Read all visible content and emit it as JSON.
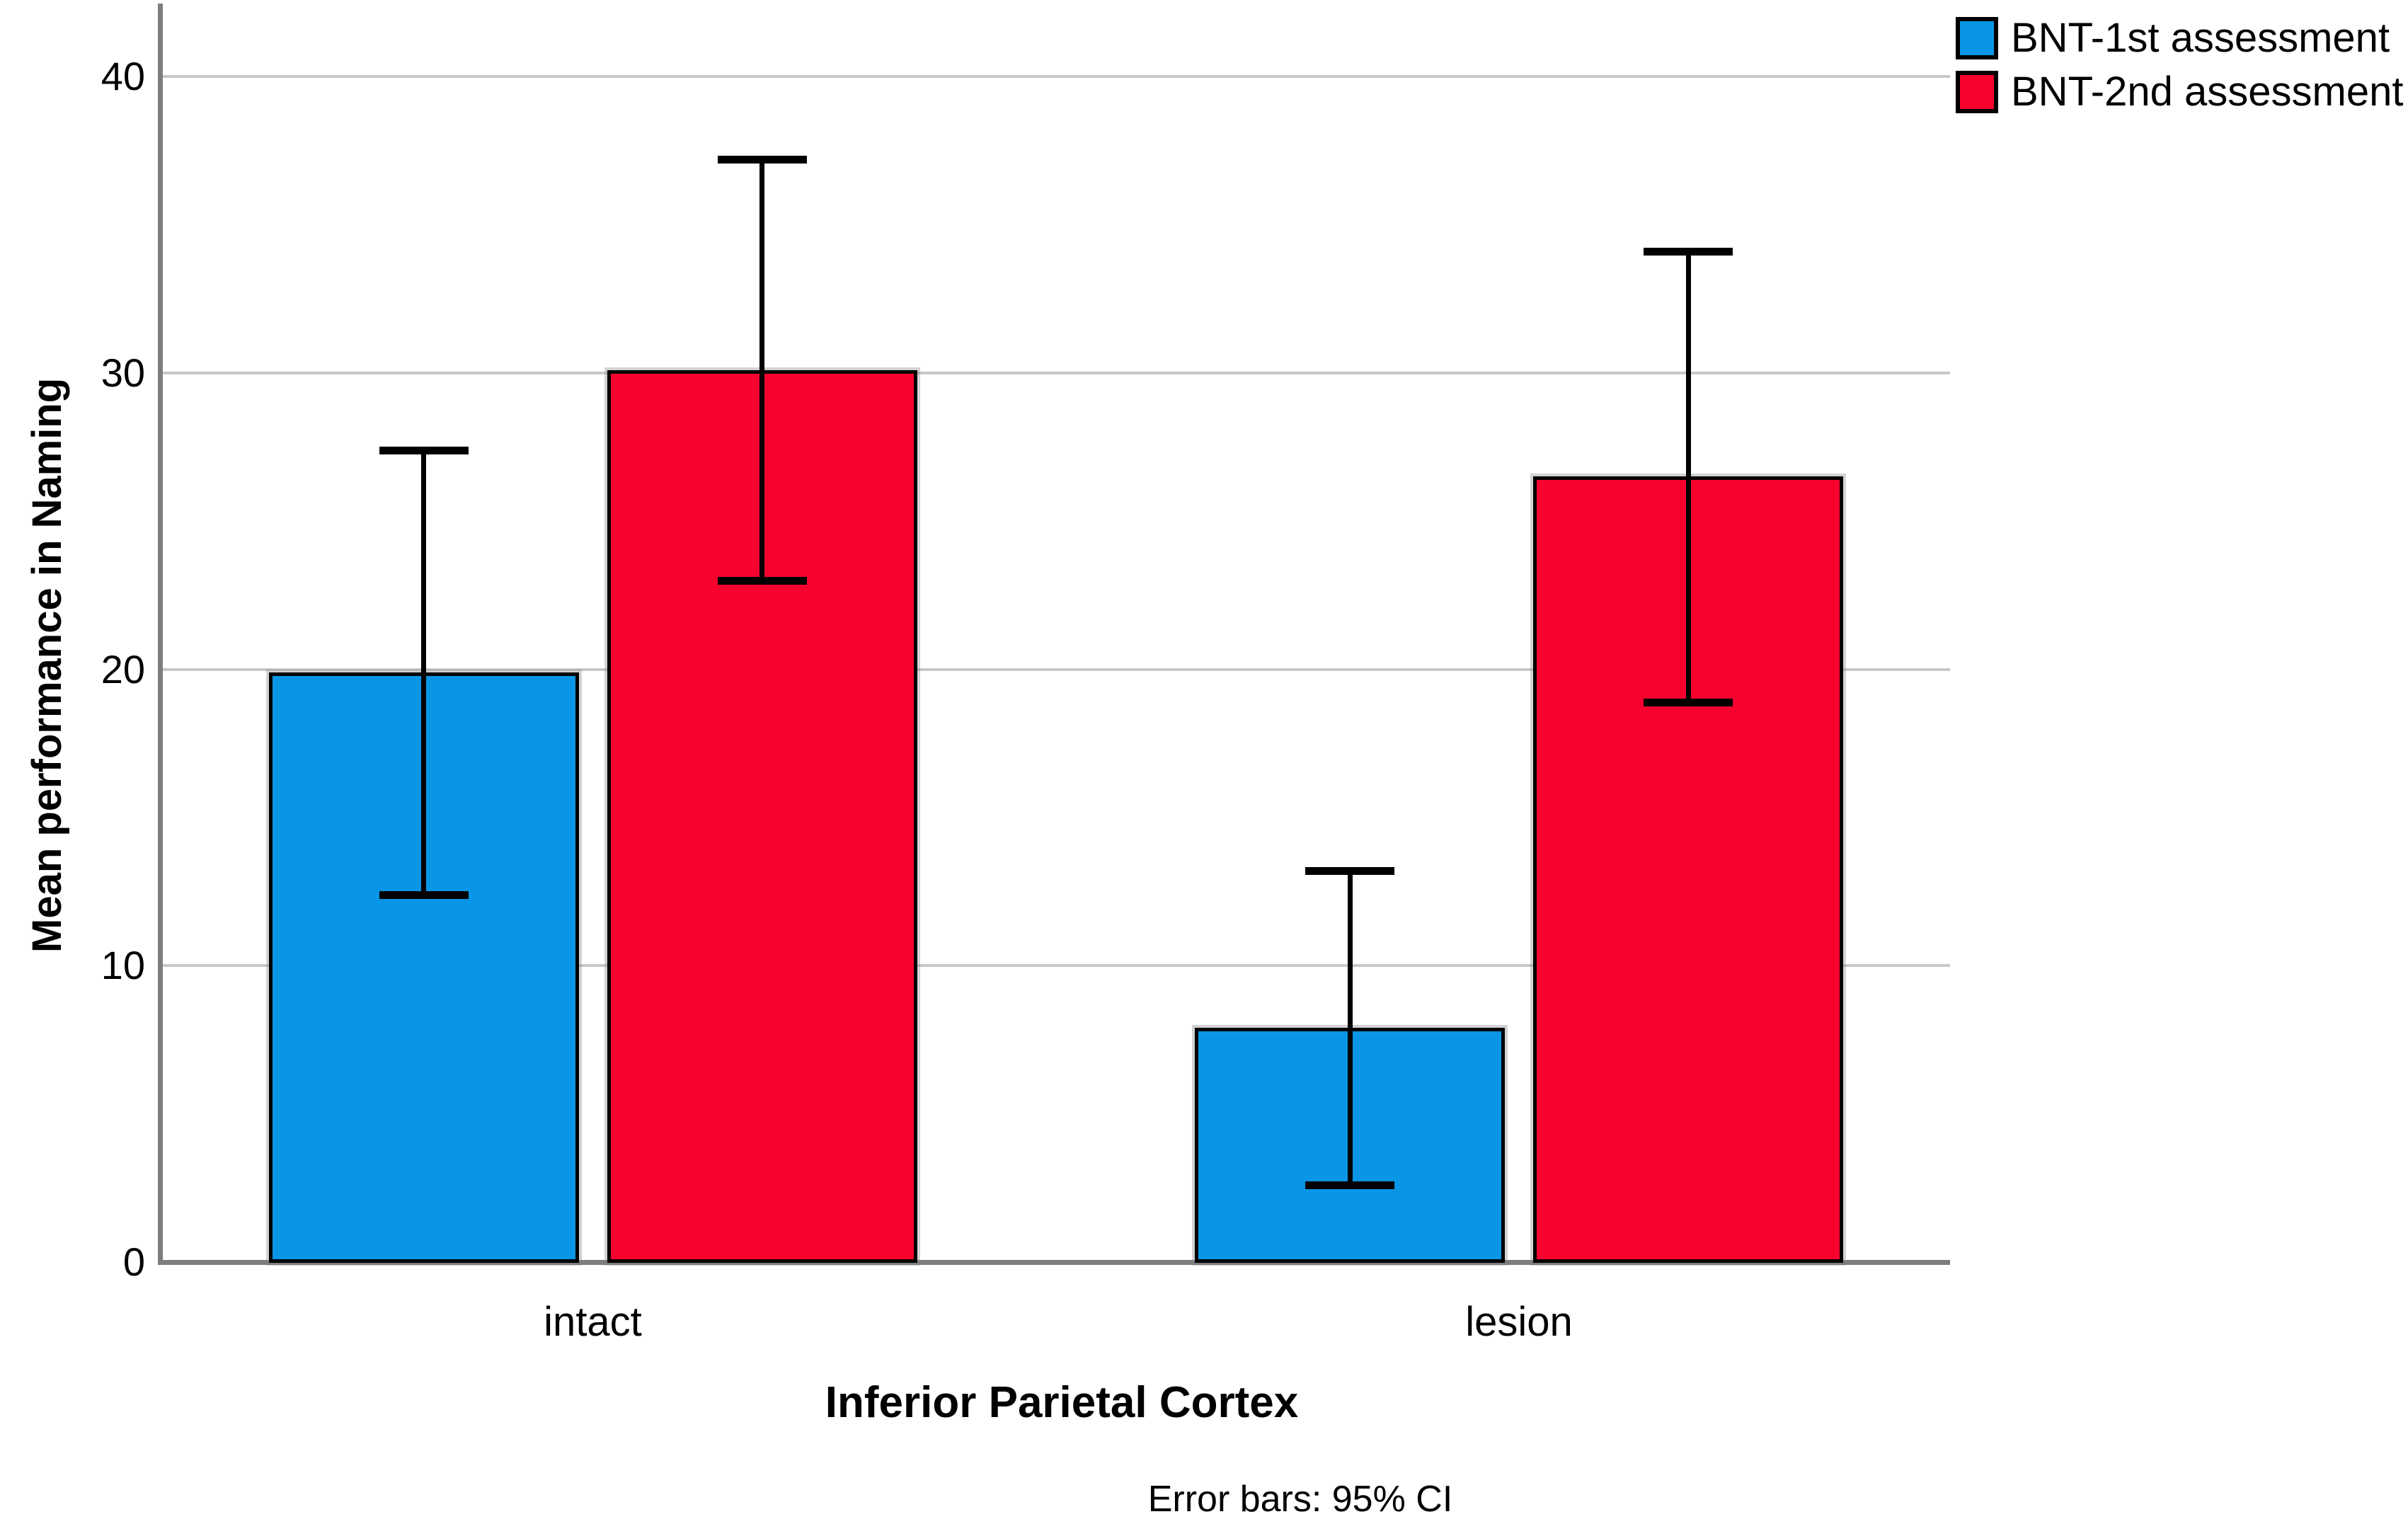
{
  "chart_data": {
    "type": "bar",
    "categories": [
      "intact",
      "lesion"
    ],
    "series": [
      {
        "name": "BNT-1st assessment",
        "color": "#0A96E6",
        "values": [
          19.9,
          7.9
        ],
        "ci_low": [
          12.4,
          2.6
        ],
        "ci_high": [
          27.4,
          13.2
        ]
      },
      {
        "name": "BNT-2nd assessment",
        "color": "#F7022F",
        "values": [
          30.1,
          26.5
        ],
        "ci_low": [
          23.0,
          18.9
        ],
        "ci_high": [
          37.2,
          34.1
        ]
      }
    ],
    "xlabel": "Inferior Parietal Cortex",
    "ylabel": "Mean performance in Naming",
    "footnote": "Error bars: 95% CI",
    "yticks": [
      0,
      10,
      20,
      30,
      40
    ],
    "ylim": [
      0,
      42
    ],
    "grid": "horizontal-only",
    "legend_position": "top-right",
    "error_bars": "95% CI"
  }
}
